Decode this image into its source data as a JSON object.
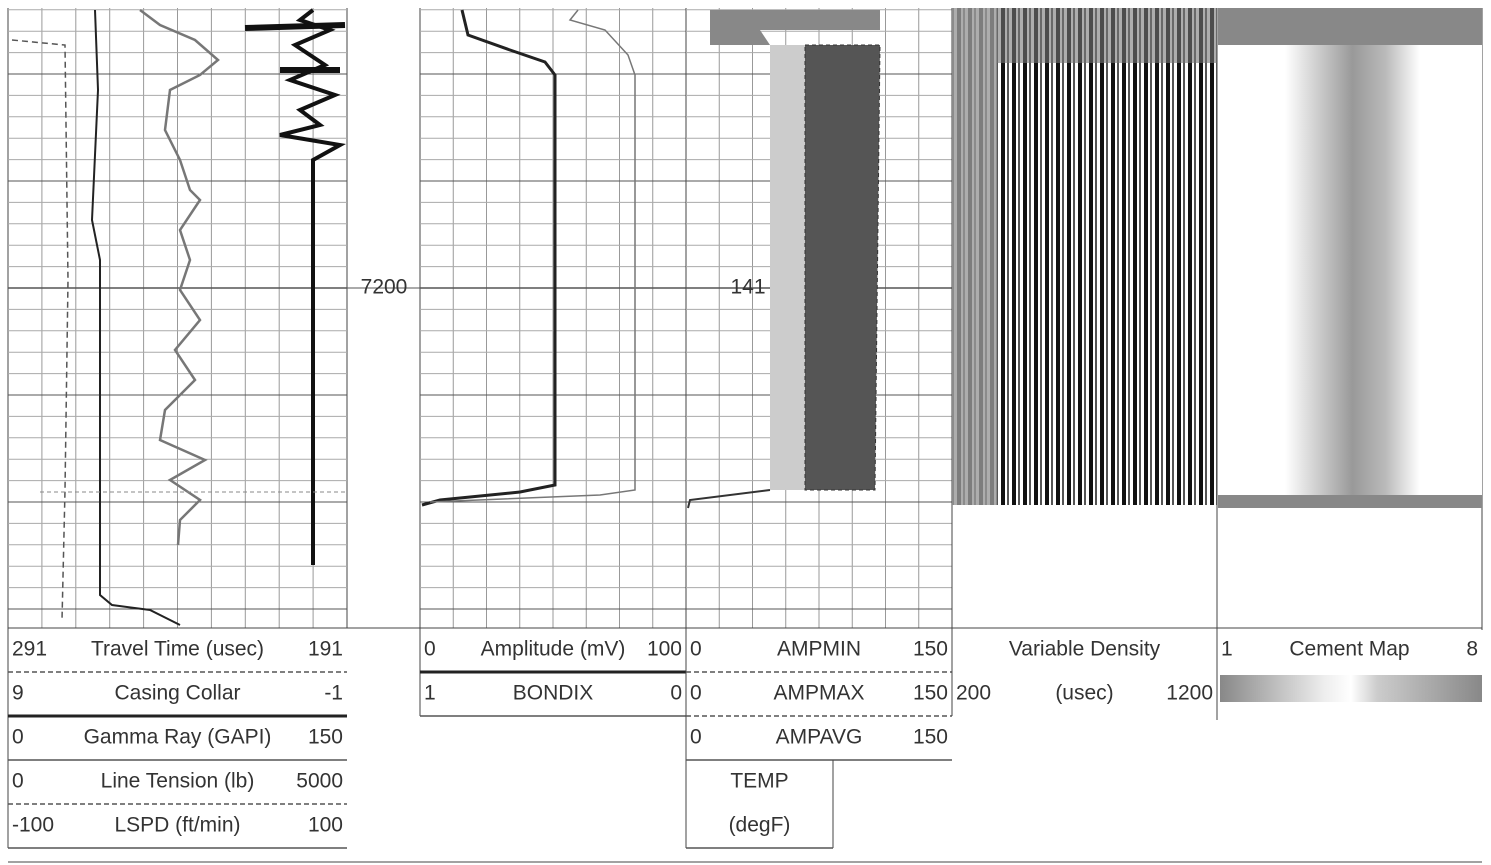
{
  "depth_labels": [
    "7200",
    "141"
  ],
  "tracks": [
    {
      "curves": [
        {
          "left": "291",
          "name": "Travel Time (usec)",
          "right": "191"
        },
        {
          "left": "9",
          "name": "Casing Collar",
          "right": "-1"
        },
        {
          "left": "0",
          "name": "Gamma Ray (GAPI)",
          "right": "150"
        },
        {
          "left": "0",
          "name": "Line Tension (lb)",
          "right": "5000"
        },
        {
          "left": "-100",
          "name": "LSPD (ft/min)",
          "right": "100"
        }
      ]
    },
    {
      "curves": [
        {
          "left": "0",
          "name": "Amplitude (mV)",
          "right": "100"
        },
        {
          "left": "1",
          "name": "BONDIX",
          "right": "0"
        }
      ]
    },
    {
      "curves": [
        {
          "left": "0",
          "name": "AMPMIN",
          "right": "150"
        },
        {
          "left": "0",
          "name": "AMPMAX",
          "right": "150"
        },
        {
          "left": "0",
          "name": "AMPAVG",
          "right": "150"
        }
      ],
      "temp": {
        "name": "TEMP",
        "unit": "(degF)"
      }
    },
    {
      "curves": [
        {
          "name": "Variable Density"
        },
        {
          "left": "200",
          "name": "(usec)",
          "right": "1200"
        }
      ]
    },
    {
      "curves": [
        {
          "left": "1",
          "name": "Cement Map",
          "right": "8"
        }
      ]
    }
  ]
}
